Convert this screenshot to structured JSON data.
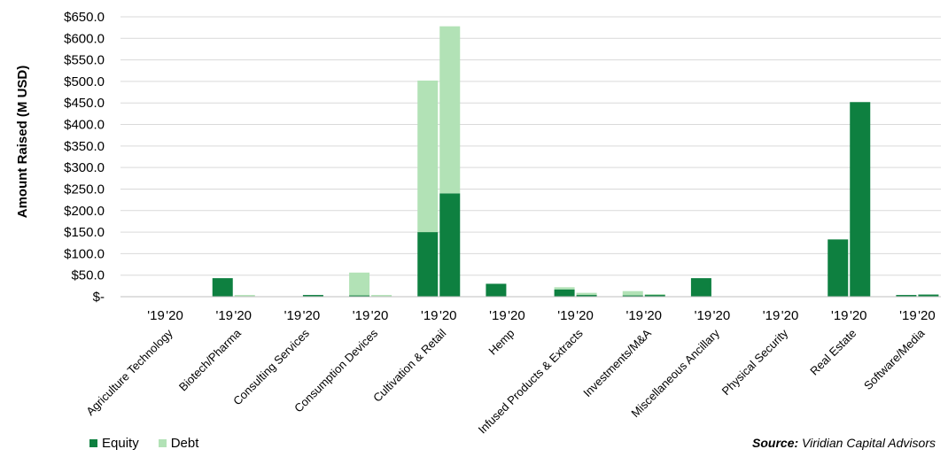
{
  "chart_data": {
    "type": "bar",
    "stacked": true,
    "ylabel": "Amount Raised (M USD)",
    "ylim": [
      0,
      650
    ],
    "y_ticks": [
      "$650.0",
      "$600.0",
      "$550.0",
      "$500.0",
      "$450.0",
      "$400.0",
      "$350.0",
      "$300.0",
      "$250.0",
      "$200.0",
      "$150.0",
      "$100.0",
      "$50.0",
      "$-"
    ],
    "grid": true,
    "legend_position": "bottom-left",
    "years": [
      "'19",
      "'20"
    ],
    "categories": [
      "Agriculture Technology",
      "Biotech/Pharma",
      "Consulting Services",
      "Consumption Devices",
      "Cultivation & Retail",
      "Hemp",
      "Infused Products & Extracts",
      "Investments/M&A",
      "Miscellaneous Ancillary",
      "Physical Security",
      "Real Estate",
      "Software/Media"
    ],
    "series": [
      {
        "name": "Equity",
        "color": "#0e8040",
        "values_2019": [
          0,
          43,
          0,
          3,
          150,
          30,
          17,
          3,
          43,
          0,
          133,
          4
        ],
        "values_2020": [
          0,
          0,
          4,
          0,
          240,
          0,
          4,
          4,
          0,
          0,
          452,
          5
        ]
      },
      {
        "name": "Debt",
        "color": "#b2e2b6",
        "values_2019": [
          0,
          0,
          0,
          53,
          352,
          0,
          5,
          10,
          0,
          0,
          0,
          0
        ],
        "values_2020": [
          0,
          4,
          0,
          4,
          388,
          0,
          5,
          2,
          0,
          0,
          0,
          0
        ]
      }
    ]
  },
  "source": {
    "label": "Source:",
    "text": "Viridian Capital Advisors"
  }
}
